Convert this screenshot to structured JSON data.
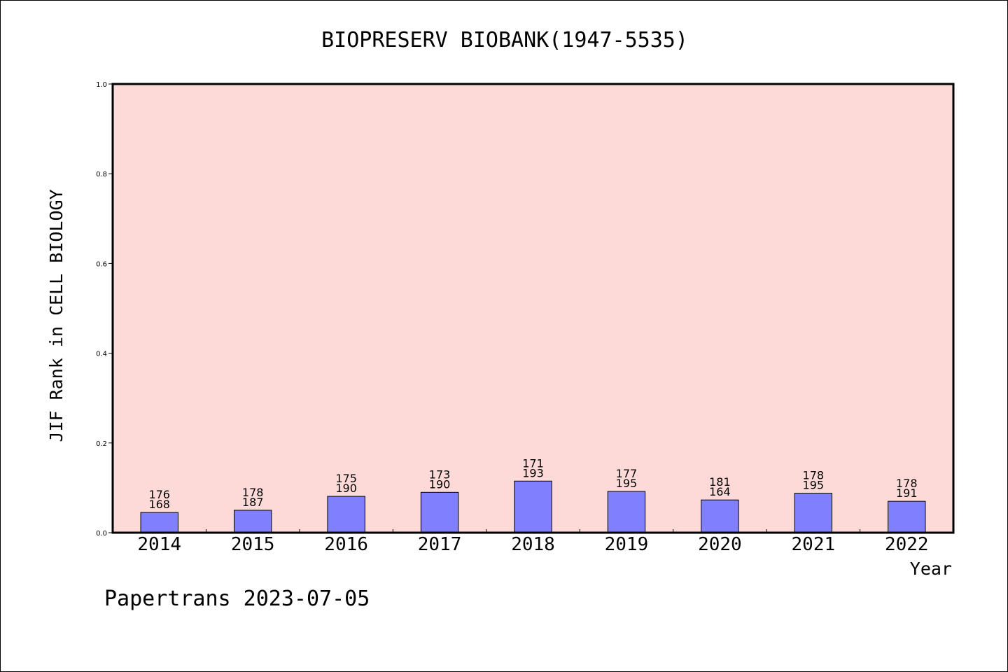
{
  "chart_data": {
    "type": "bar",
    "title": "BIOPRESERV BIOBANK(1947-5535)",
    "xlabel": "Year",
    "ylabel": "JIF Rank in CELL BIOLOGY",
    "ylim": [
      0,
      1.0
    ],
    "yticks": [
      "0.0",
      "0.2",
      "0.4",
      "0.6",
      "0.8",
      "1.0"
    ],
    "grid": false,
    "colors": {
      "plot_bg": "#fddad7",
      "bar_fill": "#8080ff",
      "bar_stroke": "#000000"
    },
    "categories": [
      "2014",
      "2015",
      "2016",
      "2017",
      "2018",
      "2019",
      "2020",
      "2021",
      "2022"
    ],
    "values": [
      0.045,
      0.05,
      0.081,
      0.09,
      0.115,
      0.092,
      0.073,
      0.088,
      0.07
    ],
    "labels_top": [
      "176",
      "178",
      "175",
      "173",
      "171",
      "177",
      "181",
      "178",
      "178"
    ],
    "labels_bottom": [
      "168",
      "187",
      "190",
      "190",
      "193",
      "195",
      "164",
      "195",
      "191"
    ]
  },
  "footer": "Papertrans 2023-07-05"
}
